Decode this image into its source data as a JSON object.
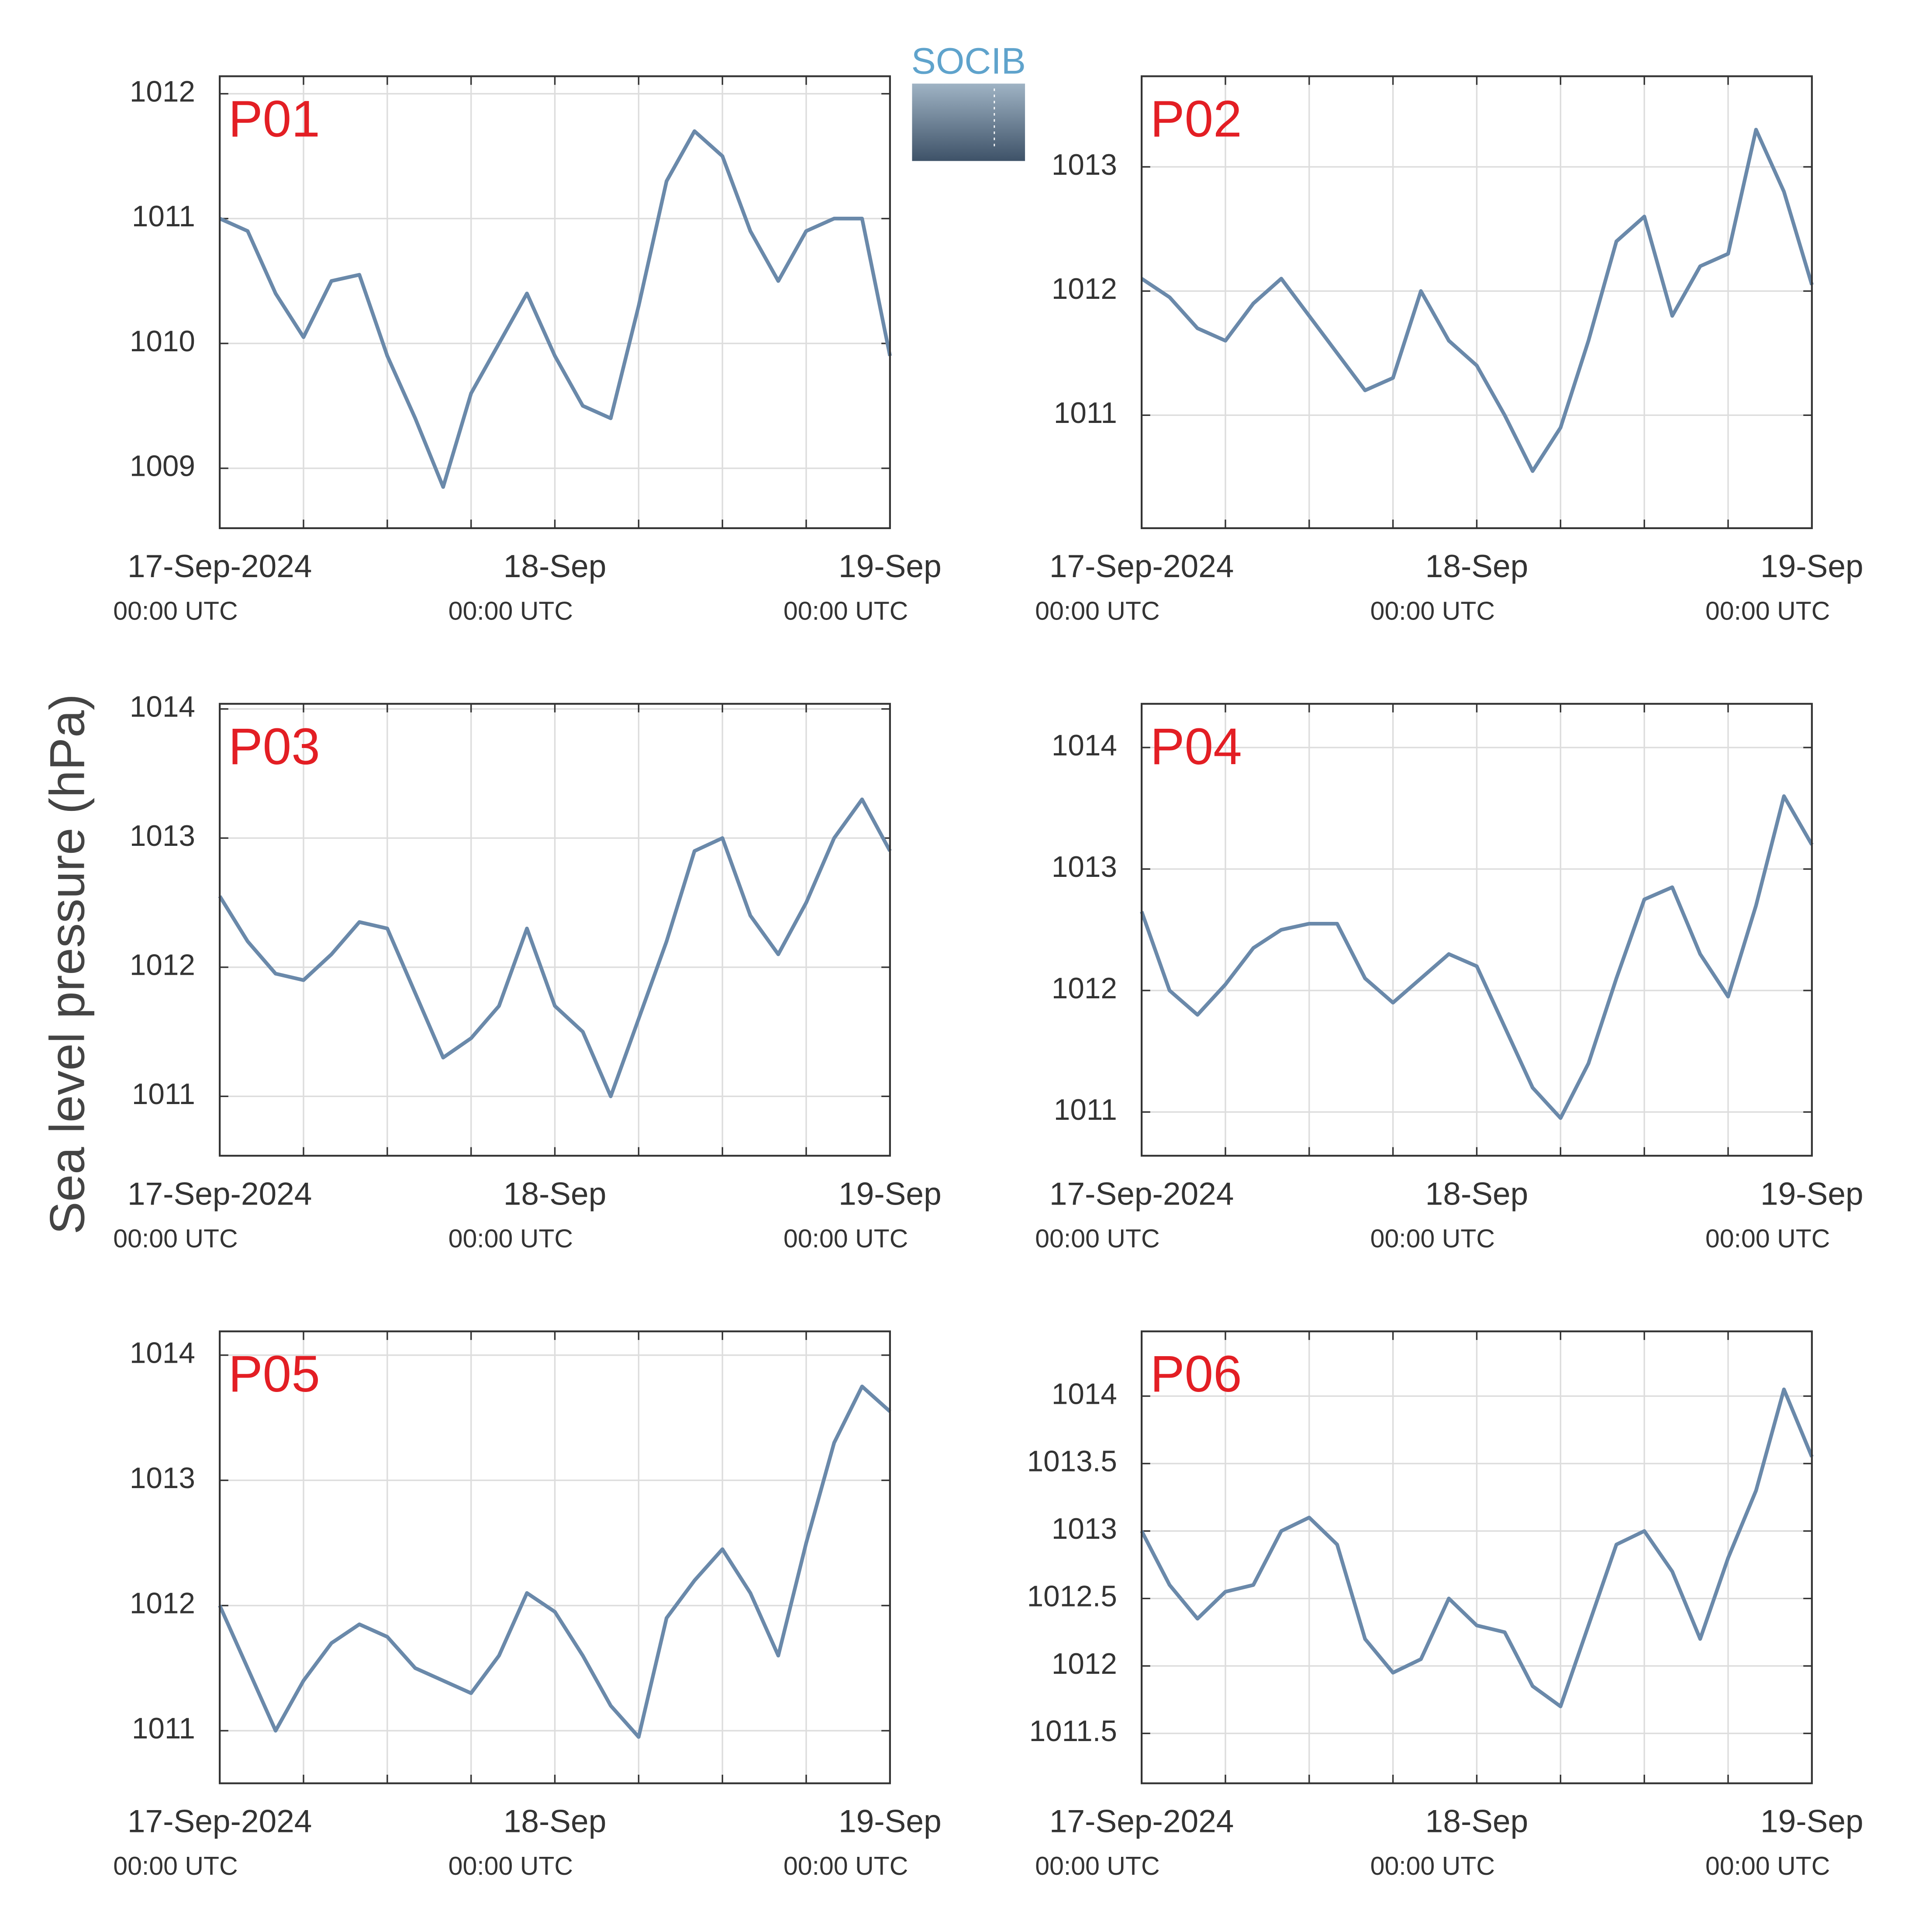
{
  "ylabel": "Sea level pressure (hPa)",
  "logo": "SOCIB",
  "chart_data": [
    {
      "type": "line",
      "annotation": "P01",
      "color": "#6a89aa",
      "x": [
        "2024-09-17T00:00",
        "2024-09-17T02:00",
        "2024-09-17T04:00",
        "2024-09-17T06:00",
        "2024-09-17T08:00",
        "2024-09-17T10:00",
        "2024-09-17T12:00",
        "2024-09-17T14:00",
        "2024-09-17T16:00",
        "2024-09-17T18:00",
        "2024-09-17T20:00",
        "2024-09-17T22:00",
        "2024-09-18T00:00",
        "2024-09-18T02:00",
        "2024-09-18T04:00",
        "2024-09-18T06:00",
        "2024-09-18T08:00",
        "2024-09-18T10:00",
        "2024-09-18T12:00",
        "2024-09-18T14:00",
        "2024-09-18T16:00",
        "2024-09-18T18:00",
        "2024-09-18T20:00",
        "2024-09-18T22:00",
        "2024-09-19T00:00"
      ],
      "values": [
        1011.0,
        1010.9,
        1010.4,
        1010.05,
        1010.5,
        1010.55,
        1009.9,
        1009.4,
        1008.85,
        1009.6,
        1010.0,
        1010.4,
        1009.9,
        1009.5,
        1009.4,
        1010.3,
        1011.3,
        1011.7,
        1011.5,
        1010.9,
        1010.5,
        1010.9,
        1011.0,
        1011.0,
        1009.9
      ],
      "xlim": [
        "2024-09-17T00:00",
        "2024-09-19T00:00"
      ],
      "xticks": [
        {
          "value": "2024-09-17T00:00",
          "label": "17-Sep-2024",
          "sublabel": "00:00 UTC"
        },
        {
          "value": "2024-09-18T00:00",
          "label": "18-Sep",
          "sublabel": "00:00 UTC"
        },
        {
          "value": "2024-09-19T00:00",
          "label": "19-Sep",
          "sublabel": "00:00 UTC"
        }
      ],
      "xminorticks": [
        "2024-09-17T06:00",
        "2024-09-17T12:00",
        "2024-09-17T18:00",
        "2024-09-18T06:00",
        "2024-09-18T12:00",
        "2024-09-18T18:00"
      ],
      "ylim": [
        1008.52,
        1012.14
      ],
      "yticks": [
        1009,
        1010,
        1011,
        1012
      ],
      "grid": true
    },
    {
      "type": "line",
      "annotation": "P02",
      "color": "#6a89aa",
      "x": [
        "2024-09-17T00:00",
        "2024-09-17T02:00",
        "2024-09-17T04:00",
        "2024-09-17T06:00",
        "2024-09-17T08:00",
        "2024-09-17T10:00",
        "2024-09-17T12:00",
        "2024-09-17T14:00",
        "2024-09-17T16:00",
        "2024-09-17T18:00",
        "2024-09-17T20:00",
        "2024-09-17T22:00",
        "2024-09-18T00:00",
        "2024-09-18T02:00",
        "2024-09-18T04:00",
        "2024-09-18T06:00",
        "2024-09-18T08:00",
        "2024-09-18T10:00",
        "2024-09-18T12:00",
        "2024-09-18T14:00",
        "2024-09-18T16:00",
        "2024-09-18T18:00",
        "2024-09-18T20:00",
        "2024-09-18T22:00",
        "2024-09-19T00:00"
      ],
      "values": [
        1012.1,
        1011.95,
        1011.7,
        1011.6,
        1011.9,
        1012.1,
        1011.8,
        1011.5,
        1011.2,
        1011.3,
        1012.0,
        1011.6,
        1011.4,
        1011.0,
        1010.55,
        1010.9,
        1011.6,
        1012.4,
        1012.6,
        1011.8,
        1012.2,
        1012.3,
        1013.3,
        1012.8,
        1012.05
      ],
      "xlim": [
        "2024-09-17T00:00",
        "2024-09-19T00:00"
      ],
      "xticks": [
        {
          "value": "2024-09-17T00:00",
          "label": "17-Sep-2024",
          "sublabel": "00:00 UTC"
        },
        {
          "value": "2024-09-18T00:00",
          "label": "18-Sep",
          "sublabel": "00:00 UTC"
        },
        {
          "value": "2024-09-19T00:00",
          "label": "19-Sep",
          "sublabel": "00:00 UTC"
        }
      ],
      "xminorticks": [
        "2024-09-17T06:00",
        "2024-09-17T12:00",
        "2024-09-17T18:00",
        "2024-09-18T06:00",
        "2024-09-18T12:00",
        "2024-09-18T18:00"
      ],
      "ylim": [
        1010.09,
        1013.73
      ],
      "yticks": [
        1011,
        1012,
        1013
      ],
      "grid": true
    },
    {
      "type": "line",
      "annotation": "P03",
      "color": "#6a89aa",
      "x": [
        "2024-09-17T00:00",
        "2024-09-17T02:00",
        "2024-09-17T04:00",
        "2024-09-17T06:00",
        "2024-09-17T08:00",
        "2024-09-17T10:00",
        "2024-09-17T12:00",
        "2024-09-17T14:00",
        "2024-09-17T16:00",
        "2024-09-17T18:00",
        "2024-09-17T20:00",
        "2024-09-17T22:00",
        "2024-09-18T00:00",
        "2024-09-18T02:00",
        "2024-09-18T04:00",
        "2024-09-18T06:00",
        "2024-09-18T08:00",
        "2024-09-18T10:00",
        "2024-09-18T12:00",
        "2024-09-18T14:00",
        "2024-09-18T16:00",
        "2024-09-18T18:00",
        "2024-09-18T20:00",
        "2024-09-18T22:00",
        "2024-09-19T00:00"
      ],
      "values": [
        1012.55,
        1012.2,
        1011.95,
        1011.9,
        1012.1,
        1012.35,
        1012.3,
        1011.8,
        1011.3,
        1011.45,
        1011.7,
        1012.3,
        1011.7,
        1011.5,
        1011.0,
        1011.6,
        1012.2,
        1012.9,
        1013.0,
        1012.4,
        1012.1,
        1012.5,
        1013.0,
        1013.3,
        1012.9
      ],
      "xlim": [
        "2024-09-17T00:00",
        "2024-09-19T00:00"
      ],
      "xticks": [
        {
          "value": "2024-09-17T00:00",
          "label": "17-Sep-2024",
          "sublabel": "00:00 UTC"
        },
        {
          "value": "2024-09-18T00:00",
          "label": "18-Sep",
          "sublabel": "00:00 UTC"
        },
        {
          "value": "2024-09-19T00:00",
          "label": "19-Sep",
          "sublabel": "00:00 UTC"
        }
      ],
      "xminorticks": [
        "2024-09-17T06:00",
        "2024-09-17T12:00",
        "2024-09-17T18:00",
        "2024-09-18T06:00",
        "2024-09-18T12:00",
        "2024-09-18T18:00"
      ],
      "ylim": [
        1010.54,
        1014.04
      ],
      "yticks": [
        1011,
        1012,
        1013,
        1014
      ],
      "grid": true
    },
    {
      "type": "line",
      "annotation": "P04",
      "color": "#6a89aa",
      "x": [
        "2024-09-17T00:00",
        "2024-09-17T02:00",
        "2024-09-17T04:00",
        "2024-09-17T06:00",
        "2024-09-17T08:00",
        "2024-09-17T10:00",
        "2024-09-17T12:00",
        "2024-09-17T14:00",
        "2024-09-17T16:00",
        "2024-09-17T18:00",
        "2024-09-17T20:00",
        "2024-09-17T22:00",
        "2024-09-18T00:00",
        "2024-09-18T02:00",
        "2024-09-18T04:00",
        "2024-09-18T06:00",
        "2024-09-18T08:00",
        "2024-09-18T10:00",
        "2024-09-18T12:00",
        "2024-09-18T14:00",
        "2024-09-18T16:00",
        "2024-09-18T18:00",
        "2024-09-18T20:00",
        "2024-09-18T22:00",
        "2024-09-19T00:00"
      ],
      "values": [
        1012.65,
        1012.0,
        1011.8,
        1012.05,
        1012.35,
        1012.5,
        1012.55,
        1012.55,
        1012.1,
        1011.9,
        1012.1,
        1012.3,
        1012.2,
        1011.7,
        1011.2,
        1010.95,
        1011.4,
        1012.1,
        1012.75,
        1012.85,
        1012.3,
        1011.95,
        1012.7,
        1013.6,
        1013.2
      ],
      "xlim": [
        "2024-09-17T00:00",
        "2024-09-19T00:00"
      ],
      "xticks": [
        {
          "value": "2024-09-17T00:00",
          "label": "17-Sep-2024",
          "sublabel": "00:00 UTC"
        },
        {
          "value": "2024-09-18T00:00",
          "label": "18-Sep",
          "sublabel": "00:00 UTC"
        },
        {
          "value": "2024-09-19T00:00",
          "label": "19-Sep",
          "sublabel": "00:00 UTC"
        }
      ],
      "xminorticks": [
        "2024-09-17T06:00",
        "2024-09-17T12:00",
        "2024-09-17T18:00",
        "2024-09-18T06:00",
        "2024-09-18T12:00",
        "2024-09-18T18:00"
      ],
      "ylim": [
        1010.64,
        1014.36
      ],
      "yticks": [
        1011,
        1012,
        1013,
        1014
      ],
      "grid": true
    },
    {
      "type": "line",
      "annotation": "P05",
      "color": "#6a89aa",
      "x": [
        "2024-09-17T00:00",
        "2024-09-17T02:00",
        "2024-09-17T04:00",
        "2024-09-17T06:00",
        "2024-09-17T08:00",
        "2024-09-17T10:00",
        "2024-09-17T12:00",
        "2024-09-17T14:00",
        "2024-09-17T16:00",
        "2024-09-17T18:00",
        "2024-09-17T20:00",
        "2024-09-17T22:00",
        "2024-09-18T00:00",
        "2024-09-18T02:00",
        "2024-09-18T04:00",
        "2024-09-18T06:00",
        "2024-09-18T08:00",
        "2024-09-18T10:00",
        "2024-09-18T12:00",
        "2024-09-18T14:00",
        "2024-09-18T16:00",
        "2024-09-18T18:00",
        "2024-09-18T20:00",
        "2024-09-18T22:00",
        "2024-09-19T00:00"
      ],
      "values": [
        1012.0,
        1011.5,
        1011.0,
        1011.4,
        1011.7,
        1011.85,
        1011.75,
        1011.5,
        1011.4,
        1011.3,
        1011.6,
        1012.1,
        1011.95,
        1011.6,
        1011.2,
        1010.95,
        1011.9,
        1012.2,
        1012.45,
        1012.1,
        1011.6,
        1012.5,
        1013.3,
        1013.75,
        1013.55
      ],
      "xlim": [
        "2024-09-17T00:00",
        "2024-09-19T00:00"
      ],
      "xticks": [
        {
          "value": "2024-09-17T00:00",
          "label": "17-Sep-2024",
          "sublabel": "00:00 UTC"
        },
        {
          "value": "2024-09-18T00:00",
          "label": "18-Sep",
          "sublabel": "00:00 UTC"
        },
        {
          "value": "2024-09-19T00:00",
          "label": "19-Sep",
          "sublabel": "00:00 UTC"
        }
      ],
      "xminorticks": [
        "2024-09-17T06:00",
        "2024-09-17T12:00",
        "2024-09-17T18:00",
        "2024-09-18T06:00",
        "2024-09-18T12:00",
        "2024-09-18T18:00"
      ],
      "ylim": [
        1010.58,
        1014.19
      ],
      "yticks": [
        1011,
        1012,
        1013,
        1014
      ],
      "grid": true
    },
    {
      "type": "line",
      "annotation": "P06",
      "color": "#6a89aa",
      "x": [
        "2024-09-17T00:00",
        "2024-09-17T02:00",
        "2024-09-17T04:00",
        "2024-09-17T06:00",
        "2024-09-17T08:00",
        "2024-09-17T10:00",
        "2024-09-17T12:00",
        "2024-09-17T14:00",
        "2024-09-17T16:00",
        "2024-09-17T18:00",
        "2024-09-17T20:00",
        "2024-09-17T22:00",
        "2024-09-18T00:00",
        "2024-09-18T02:00",
        "2024-09-18T04:00",
        "2024-09-18T06:00",
        "2024-09-18T08:00",
        "2024-09-18T10:00",
        "2024-09-18T12:00",
        "2024-09-18T14:00",
        "2024-09-18T16:00",
        "2024-09-18T18:00",
        "2024-09-18T20:00",
        "2024-09-18T22:00",
        "2024-09-19T00:00"
      ],
      "values": [
        1013.0,
        1012.6,
        1012.35,
        1012.55,
        1012.6,
        1013.0,
        1013.1,
        1012.9,
        1012.2,
        1011.95,
        1012.05,
        1012.5,
        1012.3,
        1012.25,
        1011.85,
        1011.7,
        1012.3,
        1012.9,
        1013.0,
        1012.7,
        1012.2,
        1012.8,
        1013.3,
        1014.05,
        1013.55
      ],
      "xlim": [
        "2024-09-17T00:00",
        "2024-09-19T00:00"
      ],
      "xticks": [
        {
          "value": "2024-09-17T00:00",
          "label": "17-Sep-2024",
          "sublabel": "00:00 UTC"
        },
        {
          "value": "2024-09-18T00:00",
          "label": "18-Sep",
          "sublabel": "00:00 UTC"
        },
        {
          "value": "2024-09-19T00:00",
          "label": "19-Sep",
          "sublabel": "00:00 UTC"
        }
      ],
      "xminorticks": [
        "2024-09-17T06:00",
        "2024-09-17T12:00",
        "2024-09-17T18:00",
        "2024-09-18T06:00",
        "2024-09-18T12:00",
        "2024-09-18T18:00"
      ],
      "ylim": [
        1011.13,
        1014.48
      ],
      "yticks": [
        1011.5,
        1012,
        1012.5,
        1013,
        1013.5,
        1014
      ],
      "grid": true
    }
  ]
}
